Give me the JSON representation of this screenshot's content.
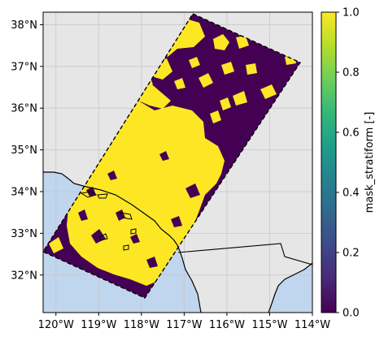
{
  "map": {
    "lon_labels": [
      "120°W",
      "119°W",
      "118°W",
      "117°W",
      "116°W",
      "115°W",
      "114°W"
    ],
    "lon_values": [
      -120,
      -119,
      -118,
      -117,
      -116,
      -115,
      -114
    ],
    "lat_labels": [
      "32°N",
      "33°N",
      "34°N",
      "35°N",
      "36°N",
      "37°N",
      "38°N"
    ],
    "lat_values": [
      32,
      33,
      34,
      35,
      36,
      37,
      38
    ],
    "extent": {
      "lon_min": -120.3,
      "lon_max": -114.0,
      "lat_min": 31.1,
      "lat_max": 38.3
    },
    "colors": {
      "land": "#e6e6e6",
      "ocean": "#c0d5ee",
      "mask_zero": "#440154",
      "mask_one": "#fde725",
      "grid": "#c8c8c8"
    }
  },
  "colorbar": {
    "label": "mask_stratiform [-]",
    "tick_labels": [
      "0.0",
      "0.2",
      "0.4",
      "0.6",
      "0.8",
      "1.0"
    ],
    "tick_values": [
      0.0,
      0.2,
      0.4,
      0.6,
      0.8,
      1.0
    ],
    "colormap": "viridis",
    "stops": [
      "#440154",
      "#482878",
      "#3e4989",
      "#31688e",
      "#26828e",
      "#1f9e89",
      "#35b779",
      "#6ece58",
      "#b5de2b",
      "#fde725"
    ]
  }
}
